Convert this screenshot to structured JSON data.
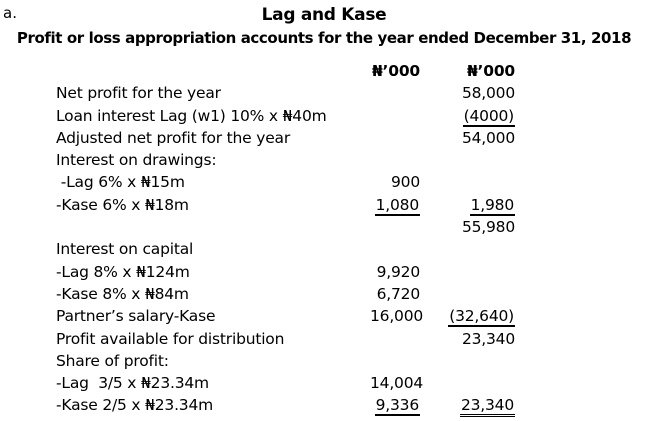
{
  "marker": "a.",
  "title": "Lag and Kase",
  "subtitle": "Profit or loss appropriation accounts for the year ended December 31, 2018",
  "table": {
    "col1_header": "₦’000",
    "col2_header": "₦’000",
    "rows": [
      {
        "label": "Net profit for the year",
        "c1": "",
        "c2": "58,000"
      },
      {
        "label": "Loan interest Lag (w1) 10% x ₦40m",
        "c1": "",
        "c2": "(4000)",
        "c2_underline": "single"
      },
      {
        "label": "Adjusted net profit for the year",
        "c1": "",
        "c2": "54,000"
      },
      {
        "label": "Interest on drawings:",
        "c1": "",
        "c2": ""
      },
      {
        "label": " -Lag 6% x ₦15m",
        "c1": "900",
        "c2": ""
      },
      {
        "label": "-Kase 6% x ₦18m",
        "c1": "1,080",
        "c1_underline": "single",
        "c2": "1,980",
        "c2_underline": "single"
      },
      {
        "label": "",
        "c1": "",
        "c2": "55,980"
      },
      {
        "label": "Interest on capital",
        "c1": "",
        "c2": ""
      },
      {
        "label": "-Lag 8% x ₦124m",
        "c1": "9,920",
        "c2": ""
      },
      {
        "label": "-Kase 8% x ₦84m",
        "c1": "6,720",
        "c2": ""
      },
      {
        "label": "Partner’s salary-Kase",
        "c1": "16,000",
        "c2": "(32,640)",
        "c2_underline": "single"
      },
      {
        "label": "Profit available for distribution",
        "c1": "",
        "c2": "23,340"
      },
      {
        "label": "Share of profit:",
        "c1": "",
        "c2": ""
      },
      {
        "label": "-Lag  3/5 x ₦23.34m",
        "c1": "14,004",
        "c2": ""
      },
      {
        "label": "-Kase 2/5 x ₦23.34m",
        "c1": "9,336",
        "c1_underline": "single",
        "c2": "23,340",
        "c2_underline": "double"
      }
    ]
  }
}
